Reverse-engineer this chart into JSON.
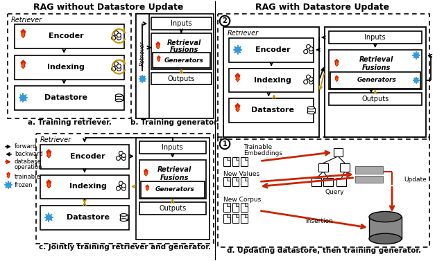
{
  "title_left": "RAG without Datastore Update",
  "title_right": "RAG with Datastore Update",
  "label_a": "a. Training retriever.",
  "label_b": "b. Training generator.",
  "label_c": "c. Jointly training retriever and generator.",
  "label_d": "d. Updating datastore, then training generator.",
  "gold": "#C8900A",
  "red": "#CC2200",
  "blue": "#3377CC",
  "black": "#000000",
  "white": "#FFFFFF",
  "lightgray": "#AAAAAA",
  "darkgray": "#555555"
}
